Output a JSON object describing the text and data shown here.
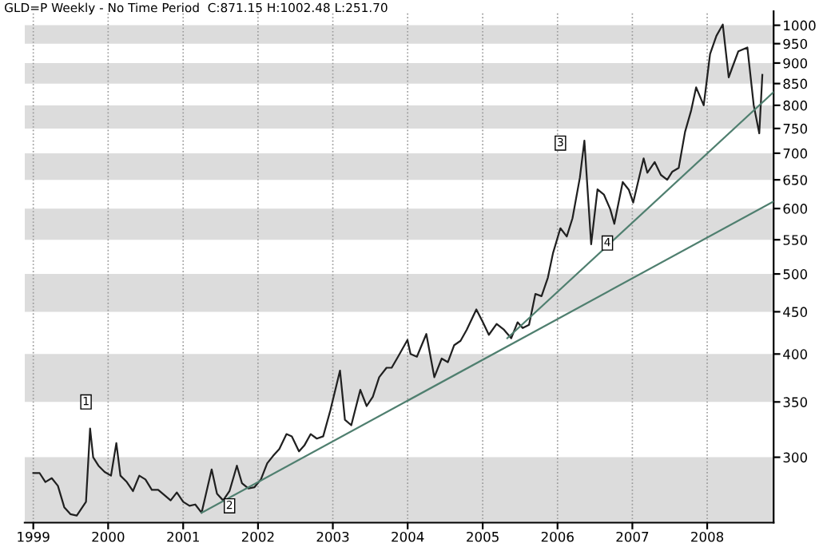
{
  "chart_data": {
    "type": "line",
    "title": "GLD=P Weekly - No Time Period  C:871.15 H:1002.48 L:251.70",
    "log": "y",
    "grid": "x",
    "line_style": "solid",
    "xlim": [
      "1998-11-20",
      "2008-11-20"
    ],
    "ylim": [
      250,
      1040
    ],
    "xticks": [
      {
        "value": "1999-01-01",
        "label": "1999"
      },
      {
        "value": "2000-01-01",
        "label": "2000"
      },
      {
        "value": "2001-01-01",
        "label": "2001"
      },
      {
        "value": "2002-01-01",
        "label": "2002"
      },
      {
        "value": "2003-01-01",
        "label": "2003"
      },
      {
        "value": "2004-01-01",
        "label": "2004"
      },
      {
        "value": "2005-01-01",
        "label": "2005"
      },
      {
        "value": "2006-01-01",
        "label": "2006"
      },
      {
        "value": "2007-01-01",
        "label": "2007"
      },
      {
        "value": "2008-01-01",
        "label": "2008"
      }
    ],
    "yticks": [
      300,
      350,
      400,
      450,
      500,
      550,
      600,
      650,
      700,
      750,
      800,
      850,
      900,
      950,
      1000
    ],
    "bands": [
      {
        "axis": "y",
        "from": 250,
        "to": 300,
        "color": "#dcdcdc"
      },
      {
        "axis": "y",
        "from": 350,
        "to": 400,
        "color": "#dcdcdc"
      },
      {
        "axis": "y",
        "from": 450,
        "to": 500,
        "color": "#dcdcdc"
      },
      {
        "axis": "y",
        "from": 550,
        "to": 600,
        "color": "#dcdcdc"
      },
      {
        "axis": "y",
        "from": 650,
        "to": 700,
        "color": "#dcdcdc"
      },
      {
        "axis": "y",
        "from": 750,
        "to": 800,
        "color": "#dcdcdc"
      },
      {
        "axis": "y",
        "from": 850,
        "to": 900,
        "color": "#dcdcdc"
      },
      {
        "axis": "y",
        "from": 950,
        "to": 1000,
        "color": "#dcdcdc"
      }
    ],
    "series": [
      {
        "color": "#202020",
        "x": [
          "1999-01-01",
          "1999-02-01",
          "1999-03-01",
          "1999-04-01",
          "1999-05-01",
          "1999-06-01",
          "1999-07-01",
          "1999-08-01",
          "1999-09-15",
          "1999-10-05",
          "1999-10-20",
          "1999-11-15",
          "1999-12-15",
          "2000-01-15",
          "2000-02-10",
          "2000-03-01",
          "2000-04-01",
          "2000-05-01",
          "2000-06-01",
          "2000-07-01",
          "2000-08-01",
          "2000-09-01",
          "2000-10-01",
          "2000-11-01",
          "2000-12-01",
          "2001-01-01",
          "2001-02-01",
          "2001-03-01",
          "2001-04-01",
          "2001-05-20",
          "2001-06-15",
          "2001-07-15",
          "2001-08-15",
          "2001-09-20",
          "2001-10-15",
          "2001-11-15",
          "2001-12-15",
          "2002-01-15",
          "2002-02-15",
          "2002-03-15",
          "2002-04-15",
          "2002-05-20",
          "2002-06-15",
          "2002-07-20",
          "2002-08-15",
          "2002-09-15",
          "2002-10-15",
          "2002-11-15",
          "2002-12-20",
          "2003-02-05",
          "2003-03-01",
          "2003-04-01",
          "2003-05-15",
          "2003-06-15",
          "2003-07-15",
          "2003-08-15",
          "2003-09-20",
          "2003-10-15",
          "2003-11-15",
          "2003-12-31",
          "2004-01-15",
          "2004-02-15",
          "2004-04-01",
          "2004-05-10",
          "2004-06-15",
          "2004-07-15",
          "2004-08-15",
          "2004-09-15",
          "2004-10-15",
          "2004-12-01",
          "2004-12-31",
          "2005-01-31",
          "2005-03-10",
          "2005-04-15",
          "2005-05-20",
          "2005-06-20",
          "2005-07-15",
          "2005-08-15",
          "2005-09-15",
          "2005-10-15",
          "2005-11-15",
          "2005-12-10",
          "2006-01-15",
          "2006-02-15",
          "2006-03-15",
          "2006-04-20",
          "2006-05-12",
          "2006-06-14",
          "2006-07-15",
          "2006-08-15",
          "2006-09-15",
          "2006-10-05",
          "2006-11-15",
          "2006-12-15",
          "2007-01-05",
          "2007-02-25",
          "2007-03-15",
          "2007-04-20",
          "2007-05-20",
          "2007-06-20",
          "2007-07-15",
          "2007-08-15",
          "2007-09-15",
          "2007-10-15",
          "2007-11-08",
          "2007-12-15",
          "2008-01-15",
          "2008-02-15",
          "2008-03-17",
          "2008-04-15",
          "2008-05-01",
          "2008-06-01",
          "2008-07-15",
          "2008-08-15",
          "2008-09-11",
          "2008-09-26"
        ],
        "values": [
          287,
          287,
          280,
          283,
          277,
          261,
          256,
          255,
          265,
          325,
          300,
          293,
          288,
          285,
          312,
          285,
          280,
          273,
          285,
          282,
          274,
          274,
          270,
          266,
          272,
          265,
          262,
          263,
          257,
          290,
          271,
          266,
          273,
          293,
          279,
          275,
          276,
          282,
          295,
          301,
          307,
          320,
          318,
          305,
          310,
          320,
          316,
          318,
          342,
          382,
          333,
          328,
          362,
          346,
          355,
          375,
          385,
          385,
          397,
          416,
          400,
          397,
          423,
          375,
          395,
          391,
          410,
          415,
          428,
          453,
          438,
          422,
          435,
          428,
          418,
          437,
          430,
          434,
          473,
          470,
          495,
          530,
          568,
          555,
          584,
          654,
          725,
          543,
          633,
          624,
          599,
          575,
          646,
          632,
          610,
          690,
          663,
          683,
          659,
          650,
          665,
          672,
          743,
          789,
          841,
          800,
          923,
          971,
          1002,
          865,
          887,
          930,
          940,
          800,
          740,
          871
        ]
      },
      {
        "color": "#4f7f6f",
        "x": [
          "2001-04-01",
          "2008-11-20"
        ],
        "values": [
          257,
          612
        ]
      },
      {
        "color": "#4f7f6f",
        "x": [
          "2005-05-01",
          "2008-11-20"
        ],
        "values": [
          418,
          830
        ]
      }
    ],
    "annotations": [
      {
        "text": "1",
        "x": "1999-09-15",
        "y": 350
      },
      {
        "text": "2",
        "x": "2001-08-15",
        "y": 262
      },
      {
        "text": "3",
        "x": "2006-01-15",
        "y": 720
      },
      {
        "text": "4",
        "x": "2006-09-01",
        "y": 545
      }
    ]
  }
}
